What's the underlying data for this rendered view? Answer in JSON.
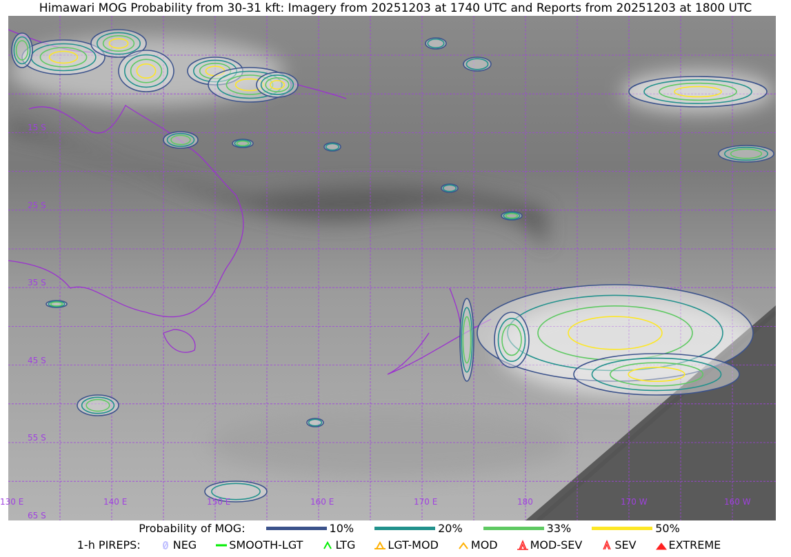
{
  "title": "Himawari MOG Probability from 30-31 kft: Imagery from 20251203 at 1740 UTC and Reports from 20251203 at 1800 UTC",
  "map": {
    "lon_labels": [
      "130 E",
      "140 E",
      "150 E",
      "160 E",
      "170 E",
      "180",
      "170 W",
      "160 W"
    ],
    "lat_labels": [
      "15 S",
      "25 S",
      "35 S",
      "45 S",
      "55 S",
      "65 S"
    ],
    "grid_color": "#a040e0",
    "coast_color": "#9b30d0"
  },
  "legend": {
    "prob_title": "Probability of MOG:",
    "prob": [
      {
        "label": "10%",
        "color": "#3b528b"
      },
      {
        "label": "20%",
        "color": "#21918c"
      },
      {
        "label": "33%",
        "color": "#5ec962"
      },
      {
        "label": "50%",
        "color": "#fde725"
      }
    ],
    "pirep_title": "1-h PIREPS:",
    "pireps": [
      {
        "label": "NEG",
        "color": "#c0c0ff",
        "icon": "neg-icon"
      },
      {
        "label": "SMOOTH-LGT",
        "color": "#00ee00",
        "icon": "smooth-lgt-icon"
      },
      {
        "label": "LTG",
        "color": "#00ee00",
        "icon": "ltg-icon"
      },
      {
        "label": "LGT-MOD",
        "color": "#ffb000",
        "icon": "lgt-mod-icon"
      },
      {
        "label": "MOD",
        "color": "#ffb000",
        "icon": "mod-icon"
      },
      {
        "label": "MOD-SEV",
        "color": "#ff2020",
        "icon": "mod-sev-icon"
      },
      {
        "label": "SEV",
        "color": "#ff2020",
        "icon": "sev-icon"
      },
      {
        "label": "EXTREME",
        "color": "#ff2020",
        "icon": "extreme-icon"
      }
    ]
  }
}
